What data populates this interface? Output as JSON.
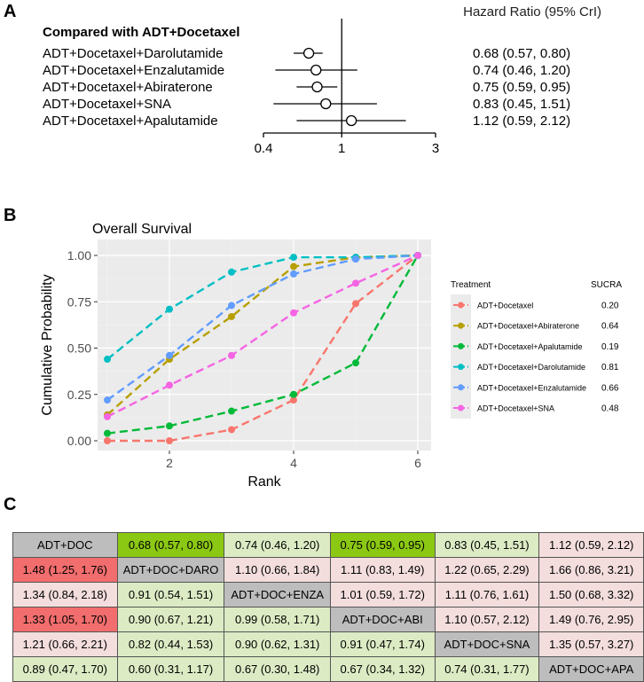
{
  "panel_labels": {
    "a": "A",
    "b": "B",
    "c": "C"
  },
  "chart_data": [
    {
      "type": "forest",
      "title": "Hazard Ratio (95% CrI)",
      "group_label": "Compared with ADT+Docetaxel",
      "xscale": "log",
      "reference_line": 1,
      "xticks": [
        0.4,
        1,
        3
      ],
      "xtick_labels": [
        "0.4",
        "1",
        "3"
      ],
      "rows": [
        {
          "label": "ADT+Docetaxel+Darolutamide",
          "hr": 0.68,
          "lo": 0.57,
          "hi": 0.8,
          "text": "0.68 (0.57, 0.80)"
        },
        {
          "label": "ADT+Docetaxel+Enzalutamide",
          "hr": 0.74,
          "lo": 0.46,
          "hi": 1.2,
          "text": "0.74 (0.46, 1.20)"
        },
        {
          "label": "ADT+Docetaxel+Abiraterone",
          "hr": 0.75,
          "lo": 0.59,
          "hi": 0.95,
          "text": "0.75 (0.59, 0.95)"
        },
        {
          "label": "ADT+Docetaxel+SNA",
          "hr": 0.83,
          "lo": 0.45,
          "hi": 1.51,
          "text": "0.83 (0.45, 1.51)"
        },
        {
          "label": "ADT+Docetaxel+Apalutamide",
          "hr": 1.12,
          "lo": 0.59,
          "hi": 2.12,
          "text": "1.12 (0.59, 2.12)"
        }
      ]
    },
    {
      "type": "line",
      "title": "Overall Survival",
      "xlabel": "Rank",
      "ylabel": "Cumulative Probability",
      "x": [
        1,
        2,
        3,
        4,
        5,
        6
      ],
      "xticks": [
        2,
        4,
        6
      ],
      "ylim": [
        0,
        1
      ],
      "yticks": [
        0,
        0.25,
        0.5,
        0.75,
        1.0
      ],
      "ytick_labels": [
        "0.00",
        "0.25",
        "0.50",
        "0.75",
        "1.00"
      ],
      "legend_title": "Treatment",
      "sucra_title": "SUCRA",
      "series": [
        {
          "name": "ADT+Docetaxel",
          "color": "#f8766d",
          "sucra": "0.20",
          "values": [
            0.0,
            0.0,
            0.06,
            0.22,
            0.74,
            1.0
          ]
        },
        {
          "name": "ADT+Docetaxel+Abiraterone",
          "color": "#b79f00",
          "sucra": "0.64",
          "values": [
            0.14,
            0.44,
            0.67,
            0.94,
            0.99,
            1.0
          ]
        },
        {
          "name": "ADT+Docetaxel+Apalutamide",
          "color": "#00ba38",
          "sucra": "0.19",
          "values": [
            0.04,
            0.08,
            0.16,
            0.25,
            0.42,
            1.0
          ]
        },
        {
          "name": "ADT+Docetaxel+Darolutamide",
          "color": "#00bfc4",
          "sucra": "0.81",
          "values": [
            0.44,
            0.71,
            0.91,
            0.99,
            0.99,
            1.0
          ]
        },
        {
          "name": "ADT+Docetaxel+Enzalutamide",
          "color": "#619cff",
          "sucra": "0.66",
          "values": [
            0.22,
            0.46,
            0.73,
            0.9,
            0.98,
            1.0
          ]
        },
        {
          "name": "ADT+Docetaxel+SNA",
          "color": "#f564e3",
          "sucra": "0.48",
          "values": [
            0.13,
            0.3,
            0.46,
            0.69,
            0.85,
            1.0
          ]
        }
      ]
    },
    {
      "type": "table",
      "treatments": [
        "ADT+DOC",
        "ADT+DOC+DARO",
        "ADT+DOC+ENZA",
        "ADT+DOC+ABI",
        "ADT+DOC+SNA",
        "ADT+DOC+APA"
      ],
      "rows": [
        [
          "ADT+DOC",
          "0.68 (0.57, 0.80)",
          "0.74 (0.46, 1.20)",
          "0.75 (0.59, 0.95)",
          "0.83 (0.45, 1.51)",
          "1.12 (0.59, 2.12)"
        ],
        [
          "1.48 (1.25, 1.76)",
          "ADT+DOC+DARO",
          "1.10 (0.66, 1.84)",
          "1.11 (0.83, 1.49)",
          "1.22 (0.65, 2.29)",
          "1.66 (0.86, 3.21)"
        ],
        [
          "1.34 (0.84, 2.18)",
          "0.91 (0.54, 1.51)",
          "ADT+DOC+ENZA",
          "1.01 (0.59, 1.72)",
          "1.11 (0.76, 1.61)",
          "1.50 (0.68, 3.32)"
        ],
        [
          "1.33 (1.05, 1.70)",
          "0.90 (0.67, 1.21)",
          "0.99 (0.58, 1.71)",
          "ADT+DOC+ABI",
          "1.10 (0.57, 2.12)",
          "1.49 (0.76, 2.95)"
        ],
        [
          "1.21 (0.66, 2.21)",
          "0.82 (0.44, 1.53)",
          "0.90 (0.62, 1.31)",
          "0.91 (0.47, 1.74)",
          "ADT+DOC+SNA",
          "1.35 (0.57, 3.27)"
        ],
        [
          "0.89 (0.47, 1.70)",
          "0.60 (0.31, 1.17)",
          "0.67 (0.30, 1.48)",
          "0.67 (0.34, 1.32)",
          "0.74 (0.31, 1.77)",
          "ADT+DOC+APA"
        ]
      ],
      "cell_colors": [
        [
          "diag",
          "green",
          "lgreen",
          "green",
          "lgreen",
          "pink"
        ],
        [
          "red",
          "diag",
          "pink",
          "pink",
          "pink",
          "pink"
        ],
        [
          "pink",
          "lgreen",
          "diag",
          "pink",
          "pink",
          "pink"
        ],
        [
          "red",
          "lgreen",
          "lgreen",
          "diag",
          "pink",
          "pink"
        ],
        [
          "pink",
          "lgreen",
          "lgreen",
          "lgreen",
          "diag",
          "pink"
        ],
        [
          "lgreen",
          "lgreen",
          "lgreen",
          "lgreen",
          "lgreen",
          "diag"
        ]
      ]
    }
  ]
}
